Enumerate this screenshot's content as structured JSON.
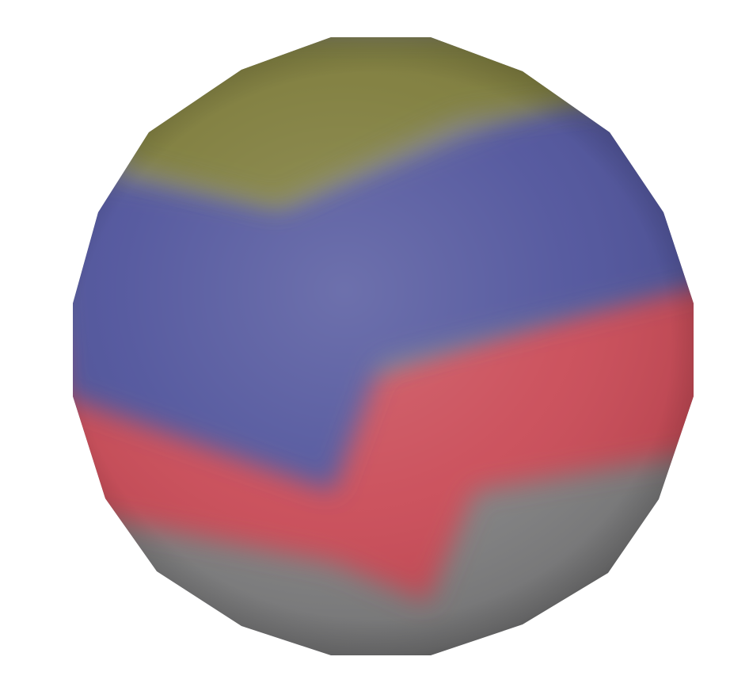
{
  "scene": {
    "background_color": "#ffffff",
    "object": "colored-sphere",
    "bands": [
      {
        "name": "top-band",
        "color": "#7c7a38"
      },
      {
        "name": "upper-band",
        "color": "#4d519a"
      },
      {
        "name": "middle-band",
        "color": "#c94a55"
      },
      {
        "name": "bottom-band",
        "color": "#7f7f80"
      }
    ],
    "shading": {
      "highlight": "#ffffff",
      "shadow": "#000000"
    }
  }
}
